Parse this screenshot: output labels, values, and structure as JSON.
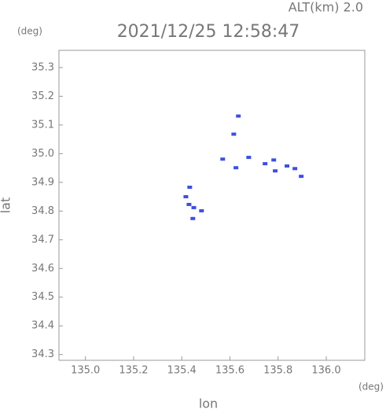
{
  "chart_data": {
    "type": "scatter",
    "title": "2021/12/25 12:58:47",
    "subtitle": "ALT(km) 2.0",
    "x_label": "lon",
    "y_label": "lat",
    "x_unit": "(deg)",
    "y_unit": "(deg)",
    "color": "#3d4fe0",
    "xlim": [
      134.89,
      136.16
    ],
    "ylim": [
      34.28,
      35.36
    ],
    "xticks": [
      {
        "value": 135.0,
        "label": "135.0"
      },
      135.2,
      135.4,
      135.6,
      135.8,
      {
        "value": 136.0,
        "label": "136.0"
      }
    ],
    "yticks": [
      34.3,
      34.4,
      34.5,
      34.6,
      34.7,
      34.8,
      34.9,
      {
        "value": 35.0,
        "label": "35.0"
      },
      35.1,
      35.2,
      35.3
    ],
    "x": [
      135.635,
      135.616,
      135.57,
      135.625,
      135.678,
      135.746,
      135.782,
      135.788,
      135.837,
      135.87,
      135.896,
      135.433,
      135.417,
      135.43,
      135.45,
      135.482,
      135.446
    ],
    "values": [
      35.131,
      35.068,
      34.981,
      34.951,
      34.987,
      34.965,
      34.978,
      34.94,
      34.957,
      34.948,
      34.921,
      34.883,
      34.85,
      34.823,
      34.812,
      34.801,
      34.774
    ]
  }
}
